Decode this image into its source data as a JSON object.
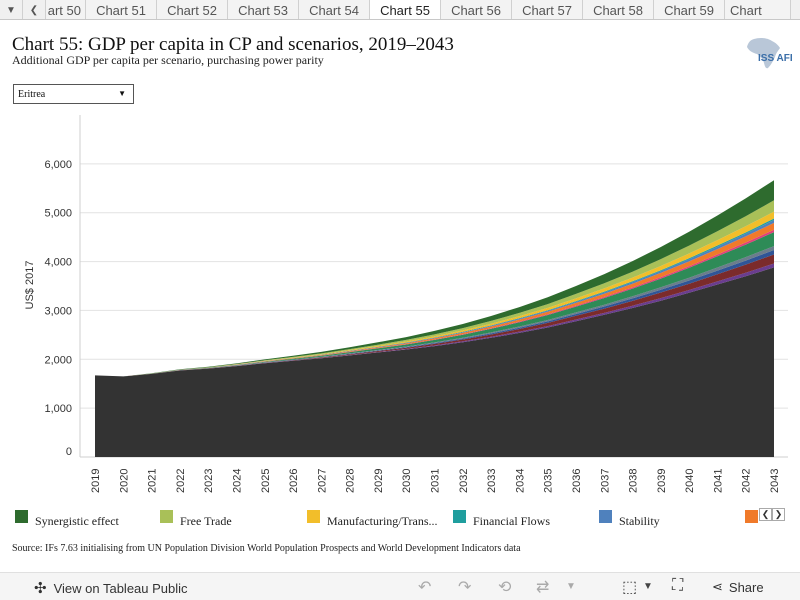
{
  "tabs": {
    "scroll_down_icon": "chevron-down-icon",
    "scroll_left_icon": "chevron-left-icon",
    "items": [
      "art 50",
      "Chart 51",
      "Chart 52",
      "Chart 53",
      "Chart 54",
      "Chart 55",
      "Chart 56",
      "Chart 57",
      "Chart 58",
      "Chart 59",
      "Chart"
    ],
    "active": "Chart 55"
  },
  "header": {
    "title": "Chart 55: GDP per capita in CP and scenarios, 2019–2043",
    "subtitle": "Additional GDP per capita per scenario, purchasing power parity",
    "logo_text": "ISS AFI"
  },
  "filter": {
    "selected": "Eritrea"
  },
  "chart_data": {
    "type": "area",
    "stacked": true,
    "ylabel": "US$ 2017",
    "ylim": [
      0,
      7000
    ],
    "yticks": [
      "6,000",
      "5,000",
      "4,000",
      "3,000",
      "2,000",
      "1,000",
      "0"
    ],
    "x": [
      "2019",
      "2020",
      "2021",
      "2022",
      "2023",
      "2024",
      "2025",
      "2026",
      "2027",
      "2028",
      "2029",
      "2030",
      "2031",
      "2032",
      "2033",
      "2034",
      "2035",
      "2036",
      "2037",
      "2038",
      "2039",
      "2040",
      "2041",
      "2042",
      "2043"
    ],
    "series": [
      {
        "name": "",
        "color": "#333333",
        "values": [
          1670,
          1650,
          1700,
          1770,
          1810,
          1860,
          1920,
          1970,
          2020,
          2080,
          2140,
          2200,
          2270,
          2350,
          2440,
          2540,
          2650,
          2780,
          2910,
          3050,
          3200,
          3360,
          3530,
          3700,
          3880
        ]
      },
      {
        "name": "",
        "color": "#6a3d8f",
        "values": [
          0,
          0,
          1,
          1,
          2,
          3,
          4,
          5,
          6,
          8,
          10,
          12,
          15,
          18,
          22,
          26,
          30,
          35,
          40,
          46,
          52,
          58,
          65,
          72,
          80
        ]
      },
      {
        "name": "",
        "color": "#7b2b2b",
        "values": [
          0,
          0,
          1,
          2,
          3,
          5,
          7,
          9,
          12,
          15,
          19,
          24,
          30,
          37,
          45,
          54,
          64,
          75,
          87,
          100,
          115,
          130,
          147,
          165,
          185
        ]
      },
      {
        "name": "",
        "color": "#2f5597",
        "values": [
          0,
          0,
          1,
          1,
          2,
          3,
          4,
          5,
          7,
          9,
          11,
          13,
          16,
          19,
          23,
          27,
          32,
          37,
          43,
          50,
          57,
          65,
          73,
          82,
          92
        ]
      },
      {
        "name": "",
        "color": "#6b7d8c",
        "values": [
          0,
          0,
          1,
          1,
          2,
          3,
          4,
          5,
          6,
          8,
          10,
          12,
          14,
          17,
          20,
          24,
          28,
          33,
          38,
          44,
          50,
          57,
          64,
          72,
          80
        ]
      },
      {
        "name": "",
        "color": "#2e8b57",
        "values": [
          0,
          0,
          2,
          4,
          6,
          9,
          12,
          16,
          21,
          27,
          34,
          42,
          51,
          61,
          73,
          87,
          102,
          118,
          136,
          156,
          178,
          202,
          228,
          256,
          286
        ]
      },
      {
        "name": "",
        "color": "#e0407b",
        "values": [
          0,
          0,
          0,
          1,
          1,
          2,
          2,
          3,
          4,
          5,
          6,
          7,
          9,
          11,
          13,
          15,
          17,
          20,
          23,
          26,
          30,
          34,
          38,
          43,
          48
        ]
      },
      {
        "name": "",
        "color": "#f07a2a",
        "values": [
          0,
          0,
          1,
          2,
          3,
          4,
          6,
          8,
          10,
          13,
          16,
          20,
          24,
          29,
          35,
          41,
          48,
          56,
          65,
          75,
          86,
          98,
          111,
          125,
          140
        ]
      },
      {
        "name": "Stability",
        "color": "#4f81bd",
        "values": [
          0,
          0,
          0,
          1,
          1,
          2,
          3,
          4,
          5,
          6,
          7,
          9,
          11,
          13,
          15,
          18,
          21,
          24,
          28,
          32,
          37,
          42,
          47,
          53,
          60
        ]
      },
      {
        "name": "Financial Flows",
        "color": "#1f9e9e",
        "values": [
          0,
          0,
          0,
          1,
          1,
          1,
          2,
          2,
          3,
          3,
          4,
          5,
          6,
          7,
          8,
          10,
          11,
          13,
          15,
          17,
          19,
          22,
          25,
          28,
          31
        ]
      },
      {
        "name": "Manufacturing/Trans...",
        "color": "#f2be2a",
        "values": [
          0,
          0,
          1,
          2,
          3,
          4,
          6,
          8,
          10,
          13,
          16,
          20,
          24,
          29,
          35,
          41,
          48,
          56,
          65,
          75,
          86,
          98,
          111,
          125,
          140
        ]
      },
      {
        "name": "Free Trade",
        "color": "#a9c058",
        "values": [
          0,
          0,
          2,
          3,
          5,
          7,
          10,
          13,
          17,
          21,
          26,
          32,
          39,
          47,
          56,
          66,
          78,
          91,
          106,
          122,
          140,
          160,
          182,
          206,
          232
        ]
      },
      {
        "name": "Synergistic effect",
        "color": "#2e6b2e",
        "values": [
          0,
          0,
          3,
          6,
          9,
          13,
          18,
          24,
          31,
          39,
          48,
          59,
          71,
          85,
          101,
          119,
          139,
          162,
          188,
          216,
          248,
          283,
          322,
          365,
          412
        ]
      }
    ]
  },
  "legend": {
    "items": [
      {
        "label": "Synergistic effect",
        "color": "#2e6b2e"
      },
      {
        "label": "Free Trade",
        "color": "#a9c058"
      },
      {
        "label": "Manufacturing/Trans...",
        "color": "#f2be2a"
      },
      {
        "label": "Financial Flows",
        "color": "#1f9e9e"
      },
      {
        "label": "Stability",
        "color": "#4f81bd"
      },
      {
        "label": "",
        "color": "#f07a2a"
      }
    ]
  },
  "source": "Source: IFs 7.63 initialising from UN Population Division World Population Prospects and World Development Indicators data",
  "toolbar": {
    "view_label": "View on Tableau Public",
    "share_label": "Share"
  }
}
